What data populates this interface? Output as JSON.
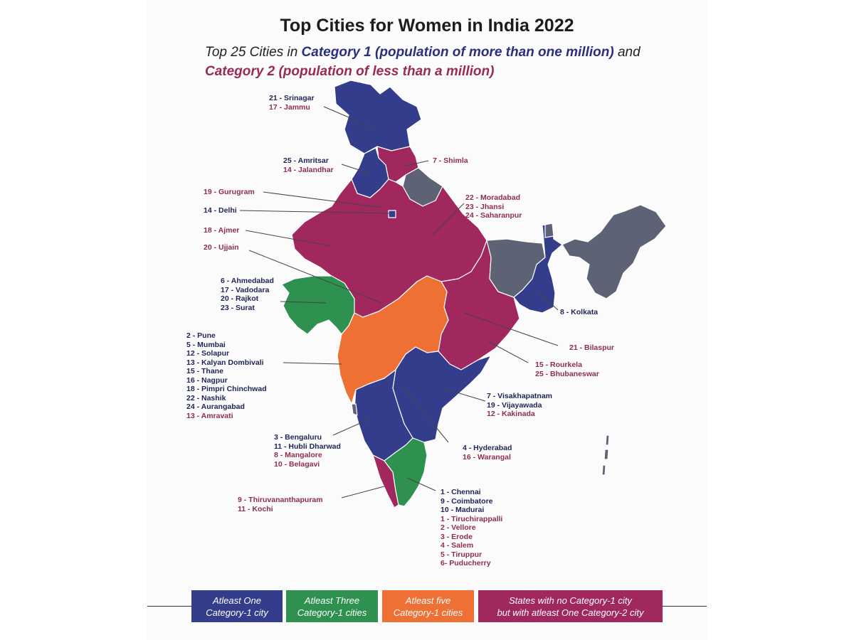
{
  "title": "Top Cities for Women in India 2022",
  "subtitle": {
    "part1": "Top 25 Cities in ",
    "category1": "Category 1 (population of more than one million)",
    "part2": " and",
    "category2": "Category 2 (population of less than a million)"
  },
  "colors": {
    "atleast_one": "#333d8c",
    "atleast_three": "#2e9150",
    "atleast_five": "#ee7035",
    "category2_only": "#a0285f",
    "no_city": "#5e6275",
    "category1_text": "#1f2456",
    "category2_text": "#8e2d4f"
  },
  "labels": [
    {
      "id": "jk",
      "lines": [
        {
          "text": "21 - Srinagar",
          "cat": 1
        },
        {
          "text": "17 - Jammu",
          "cat": 2
        }
      ]
    },
    {
      "id": "punjab",
      "lines": [
        {
          "text": "25 - Amritsar",
          "cat": 1
        },
        {
          "text": "14 - Jalandhar",
          "cat": 2
        }
      ]
    },
    {
      "id": "himachal",
      "lines": [
        {
          "text": "7 - Shimla",
          "cat": 2
        }
      ]
    },
    {
      "id": "haryana",
      "lines": [
        {
          "text": "19 - Gurugram",
          "cat": 2
        }
      ]
    },
    {
      "id": "delhi",
      "lines": [
        {
          "text": "14 - Delhi",
          "cat": 1
        }
      ]
    },
    {
      "id": "up",
      "lines": [
        {
          "text": "22 - Moradabad",
          "cat": 2
        },
        {
          "text": "23 - Jhansi",
          "cat": 2
        },
        {
          "text": "24 - Saharanpur",
          "cat": 2
        }
      ]
    },
    {
      "id": "rajasthan",
      "lines": [
        {
          "text": "18 - Ajmer",
          "cat": 2
        }
      ]
    },
    {
      "id": "mp",
      "lines": [
        {
          "text": "20 - Ujjain",
          "cat": 2
        }
      ]
    },
    {
      "id": "gujarat",
      "lines": [
        {
          "text": "6 - Ahmedabad",
          "cat": 1
        },
        {
          "text": "17 - Vadodara",
          "cat": 1
        },
        {
          "text": "20 - Rajkot",
          "cat": 1
        },
        {
          "text": "23 - Surat",
          "cat": 1
        }
      ]
    },
    {
      "id": "westbengal",
      "lines": [
        {
          "text": "8 - Kolkata",
          "cat": 1
        }
      ]
    },
    {
      "id": "chhattisgarh",
      "lines": [
        {
          "text": "21 - Bilaspur",
          "cat": 2
        }
      ]
    },
    {
      "id": "maharashtra",
      "lines": [
        {
          "text": "2 - Pune",
          "cat": 1
        },
        {
          "text": "5 - Mumbai",
          "cat": 1
        },
        {
          "text": "12 - Solapur",
          "cat": 1
        },
        {
          "text": "13 - Kalyan Dombivali",
          "cat": 1
        },
        {
          "text": "15 - Thane",
          "cat": 1
        },
        {
          "text": "16 - Nagpur",
          "cat": 1
        },
        {
          "text": "18 - Pimpri Chinchwad",
          "cat": 1
        },
        {
          "text": "22 - Nashik",
          "cat": 1
        },
        {
          "text": "24 - Aurangabad",
          "cat": 1
        },
        {
          "text": "13 - Amravati",
          "cat": 2
        }
      ]
    },
    {
      "id": "odisha",
      "lines": [
        {
          "text": "15 - Rourkela",
          "cat": 2
        },
        {
          "text": "25 - Bhubaneswar",
          "cat": 2
        }
      ]
    },
    {
      "id": "andhra",
      "lines": [
        {
          "text": "7 - Visakhapatnam",
          "cat": 1
        },
        {
          "text": "19 - Vijayawada",
          "cat": 1
        },
        {
          "text": "12 - Kakinada",
          "cat": 2
        }
      ]
    },
    {
      "id": "karnataka",
      "lines": [
        {
          "text": "3 - Bengaluru",
          "cat": 1
        },
        {
          "text": "11 - Hubli Dharwad",
          "cat": 1
        },
        {
          "text": "8 - Mangalore",
          "cat": 2
        },
        {
          "text": "10 - Belagavi",
          "cat": 2
        }
      ]
    },
    {
      "id": "telangana",
      "lines": [
        {
          "text": "4 - Hyderabad",
          "cat": 1
        },
        {
          "text": "16 - Warangal",
          "cat": 2
        }
      ]
    },
    {
      "id": "kerala",
      "lines": [
        {
          "text": "9 - Thiruvananthapuram",
          "cat": 2
        },
        {
          "text": "11 - Kochi",
          "cat": 2
        }
      ]
    },
    {
      "id": "tamilnadu",
      "lines": [
        {
          "text": "1 - Chennai",
          "cat": 1
        },
        {
          "text": "9 - Coimbatore",
          "cat": 1
        },
        {
          "text": "10 - Madurai",
          "cat": 1
        },
        {
          "text": "1 - Tiruchirappalli",
          "cat": 2
        },
        {
          "text": "2 - Vellore",
          "cat": 2
        },
        {
          "text": "3 - Erode",
          "cat": 2
        },
        {
          "text": "4 - Salem",
          "cat": 2
        },
        {
          "text": "5 - Tiruppur",
          "cat": 2
        },
        {
          "text": "6- Puducherry",
          "cat": 2
        }
      ]
    }
  ],
  "legend": [
    {
      "id": "atleast_one",
      "line1": "Atleast One",
      "line2": "Category-1 city"
    },
    {
      "id": "atleast_three",
      "line1": "Atleast Three",
      "line2": "Category-1 cities"
    },
    {
      "id": "atleast_five",
      "line1": "Atleast five",
      "line2": "Category-1 cities"
    },
    {
      "id": "category2_only",
      "line1": "States with no Category-1 city",
      "line2": "but with atleast One Category-2 city"
    }
  ]
}
